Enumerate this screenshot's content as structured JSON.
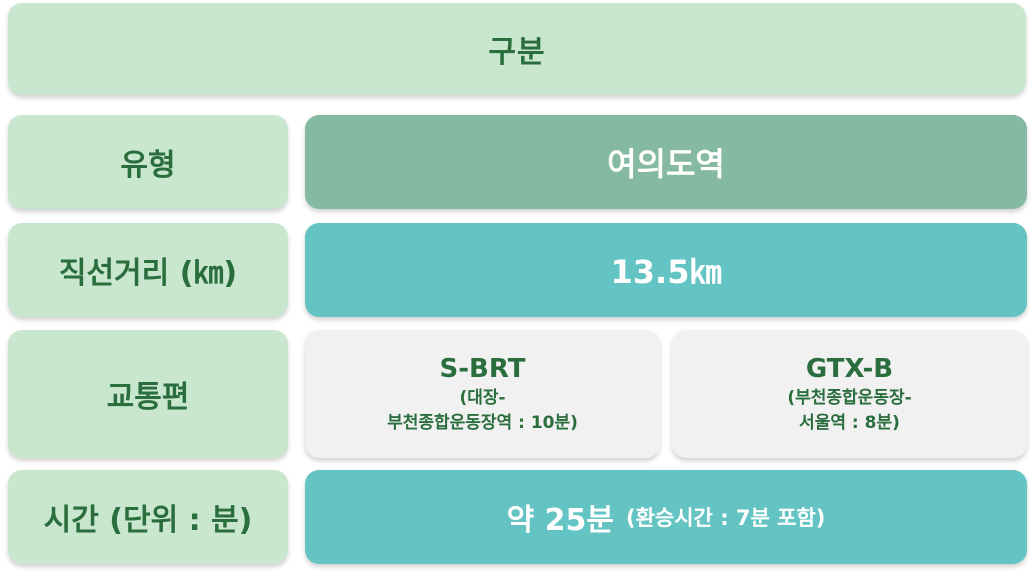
{
  "header": {
    "label": "구분"
  },
  "rows": {
    "type": {
      "label": "유형",
      "value": "여의도역"
    },
    "distance": {
      "label": "직선거리 (㎞)",
      "value": "13.5㎞"
    },
    "transit": {
      "label": "교통편",
      "option_a": {
        "title": "S-BRT",
        "detail_line1": "(대장-",
        "detail_line2": "부천종합운동장역 : 10분)"
      },
      "option_b": {
        "title": "GTX-B",
        "detail_line1": "(부천종합운동장-",
        "detail_line2": "서울역 : 8분)"
      }
    },
    "time": {
      "label": "시간 (단위 : 분)",
      "value": "약 25분",
      "note": "(환승시간 : 7분 포함)"
    }
  },
  "colors": {
    "light_green": "#c9e6cf",
    "sage_green": "#86b9a2",
    "teal": "#63c4c3",
    "light_grey": "#f1f1f1",
    "text_green": "#2a6e3e"
  }
}
